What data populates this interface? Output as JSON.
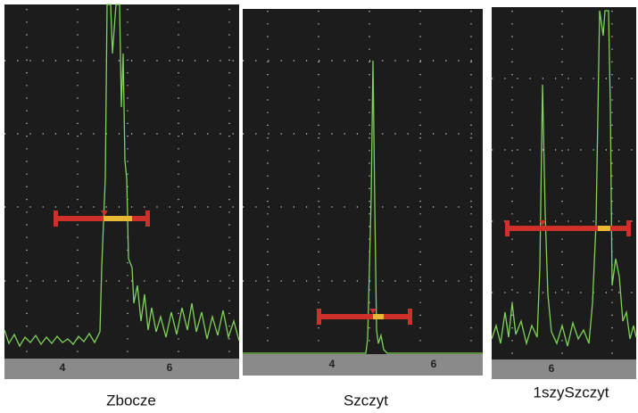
{
  "panels": [
    {
      "label": "Zbocze",
      "ticks": [
        "4",
        "6"
      ]
    },
    {
      "label": "Szczyt",
      "ticks": [
        "4",
        "6"
      ]
    },
    {
      "label": "1szySzczyt",
      "ticks": [
        "6"
      ]
    }
  ]
}
